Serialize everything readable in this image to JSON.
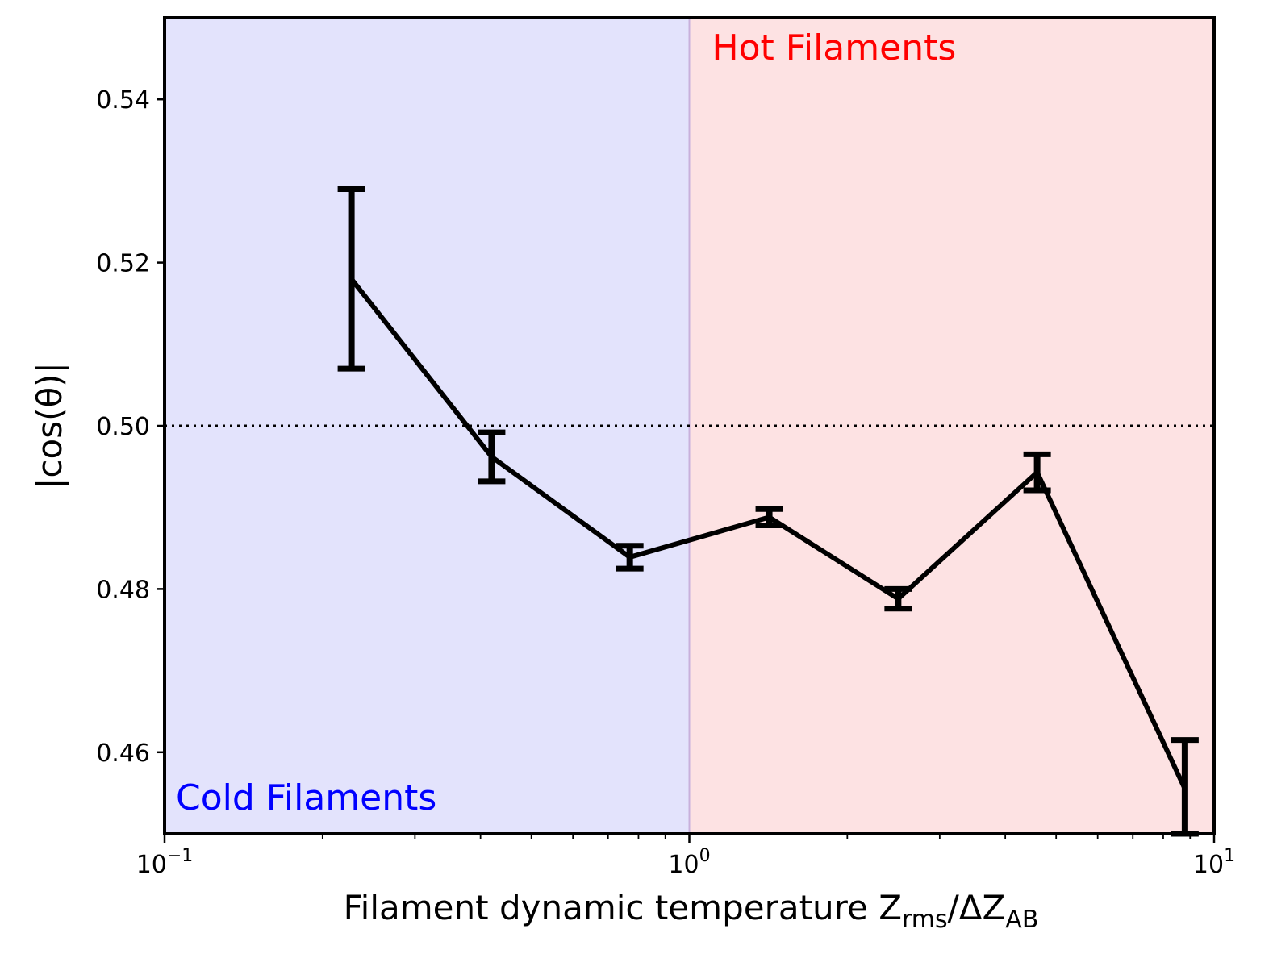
{
  "chart_data": {
    "type": "line",
    "title": "",
    "xlabel": {
      "prefix": "Filament dynamic temperature Z",
      "sub1": "rms",
      "middle": "/ΔZ",
      "sub2": "AB"
    },
    "ylabel": "|cos(θ)|",
    "xscale": "log",
    "xlim": [
      0.1,
      10
    ],
    "ylim": [
      0.45,
      0.55
    ],
    "x_ticks": [
      {
        "value": 0.1,
        "base": "10",
        "exp": "−1"
      },
      {
        "value": 1,
        "base": "10",
        "exp": "0"
      },
      {
        "value": 10,
        "base": "10",
        "exp": "1"
      }
    ],
    "y_ticks": [
      {
        "value": 0.46,
        "label": "0.46"
      },
      {
        "value": 0.48,
        "label": "0.48"
      },
      {
        "value": 0.5,
        "label": "0.50"
      },
      {
        "value": 0.52,
        "label": "0.52"
      },
      {
        "value": 0.54,
        "label": "0.54"
      }
    ],
    "reference_line": {
      "y": 0.5,
      "style": "dotted",
      "color": "#000000"
    },
    "divider_x": 1.0,
    "regions": [
      {
        "label": "Cold Filaments",
        "x_range": [
          0.1,
          1.0
        ],
        "fill": "#e3e3fc",
        "text_color": "#0000ff",
        "label_position": "bottom-left"
      },
      {
        "label": "Hot Filaments",
        "x_range": [
          1.0,
          10
        ],
        "fill": "#fde2e3",
        "text_color": "#ff0000",
        "label_position": "top-left"
      }
    ],
    "series": [
      {
        "color": "#000000",
        "x": [
          0.227,
          0.42,
          0.77,
          1.42,
          2.5,
          4.6,
          8.8
        ],
        "y": [
          0.518,
          0.4962,
          0.4839,
          0.4888,
          0.4788,
          0.4943,
          0.4555
        ],
        "yerr": [
          0.011,
          0.003,
          0.0014,
          0.001,
          0.0012,
          0.0022,
          0.006
        ]
      }
    ]
  }
}
